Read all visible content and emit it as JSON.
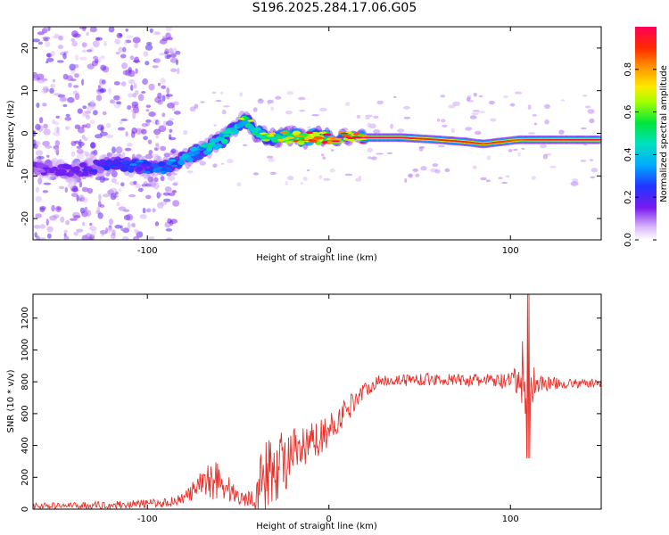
{
  "title": "S196.2025.284.17.06.G05",
  "chart_data": [
    {
      "type": "heatmap",
      "xlabel": "Height of straight line (km)",
      "ylabel": "Frequency (Hz)",
      "xlim": [
        -163,
        150
      ],
      "ylim": [
        -25,
        25
      ],
      "xticks": [
        -100,
        0,
        100
      ],
      "yticks": [
        -20,
        -10,
        0,
        10,
        20
      ],
      "colorbar": {
        "label": "Normalized spectral amplitude",
        "range": [
          0,
          1
        ],
        "ticks": [
          0.0,
          0.2,
          0.4,
          0.6,
          0.8
        ]
      },
      "ridge": {
        "x": [
          -163,
          -140,
          -120,
          -100,
          -90,
          -80,
          -70,
          -60,
          -50,
          -45,
          -40,
          -30,
          -20,
          -10,
          0,
          20,
          40,
          60,
          75,
          85,
          95,
          105,
          115,
          130,
          150
        ],
        "freq": [
          -8,
          -9,
          -7,
          -8,
          -8,
          -6,
          -4,
          -2,
          2,
          3,
          0,
          -1,
          -1,
          -1,
          -1,
          -1,
          -1,
          -1.5,
          -2,
          -2.5,
          -2,
          -1.5,
          -1.5,
          -1.5,
          -1.5
        ],
        "amplitude": [
          0.15,
          0.15,
          0.25,
          0.3,
          0.35,
          0.4,
          0.45,
          0.5,
          0.55,
          0.6,
          0.55,
          0.65,
          0.75,
          0.85,
          0.95,
          0.98,
          0.97,
          0.9,
          0.92,
          0.88,
          0.9,
          0.85,
          0.92,
          0.95,
          0.95
        ]
      }
    },
    {
      "type": "line",
      "xlabel": "Height of straight line (km)",
      "ylabel": "SNR (10 * v/v)",
      "xlim": [
        -163,
        150
      ],
      "ylim": [
        0,
        1350
      ],
      "xticks": [
        -100,
        0,
        100
      ],
      "yticks": [
        0,
        200,
        400,
        600,
        800,
        1000,
        1200
      ],
      "series": [
        {
          "name": "SNR",
          "color": "#e8302a",
          "envelope_x": [
            -163,
            -120,
            -90,
            -80,
            -70,
            -65,
            -60,
            -55,
            -50,
            -45,
            -40,
            -35,
            -30,
            -25,
            -20,
            -15,
            -10,
            -5,
            0,
            5,
            10,
            15,
            20,
            25,
            30,
            50,
            80,
            100,
            105,
            108,
            110,
            112,
            115,
            130,
            150
          ],
          "envelope_mean": [
            20,
            25,
            40,
            70,
            150,
            200,
            180,
            120,
            80,
            60,
            120,
            200,
            250,
            300,
            330,
            360,
            400,
            450,
            500,
            560,
            620,
            700,
            750,
            790,
            810,
            815,
            810,
            800,
            810,
            800,
            800,
            790,
            790,
            790,
            790
          ],
          "envelope_amp": [
            20,
            25,
            30,
            40,
            90,
            140,
            140,
            90,
            60,
            40,
            150,
            250,
            250,
            220,
            180,
            150,
            140,
            120,
            100,
            100,
            90,
            70,
            50,
            40,
            40,
            40,
            40,
            60,
            150,
            350,
            500,
            150,
            60,
            30,
            30
          ]
        }
      ]
    }
  ]
}
